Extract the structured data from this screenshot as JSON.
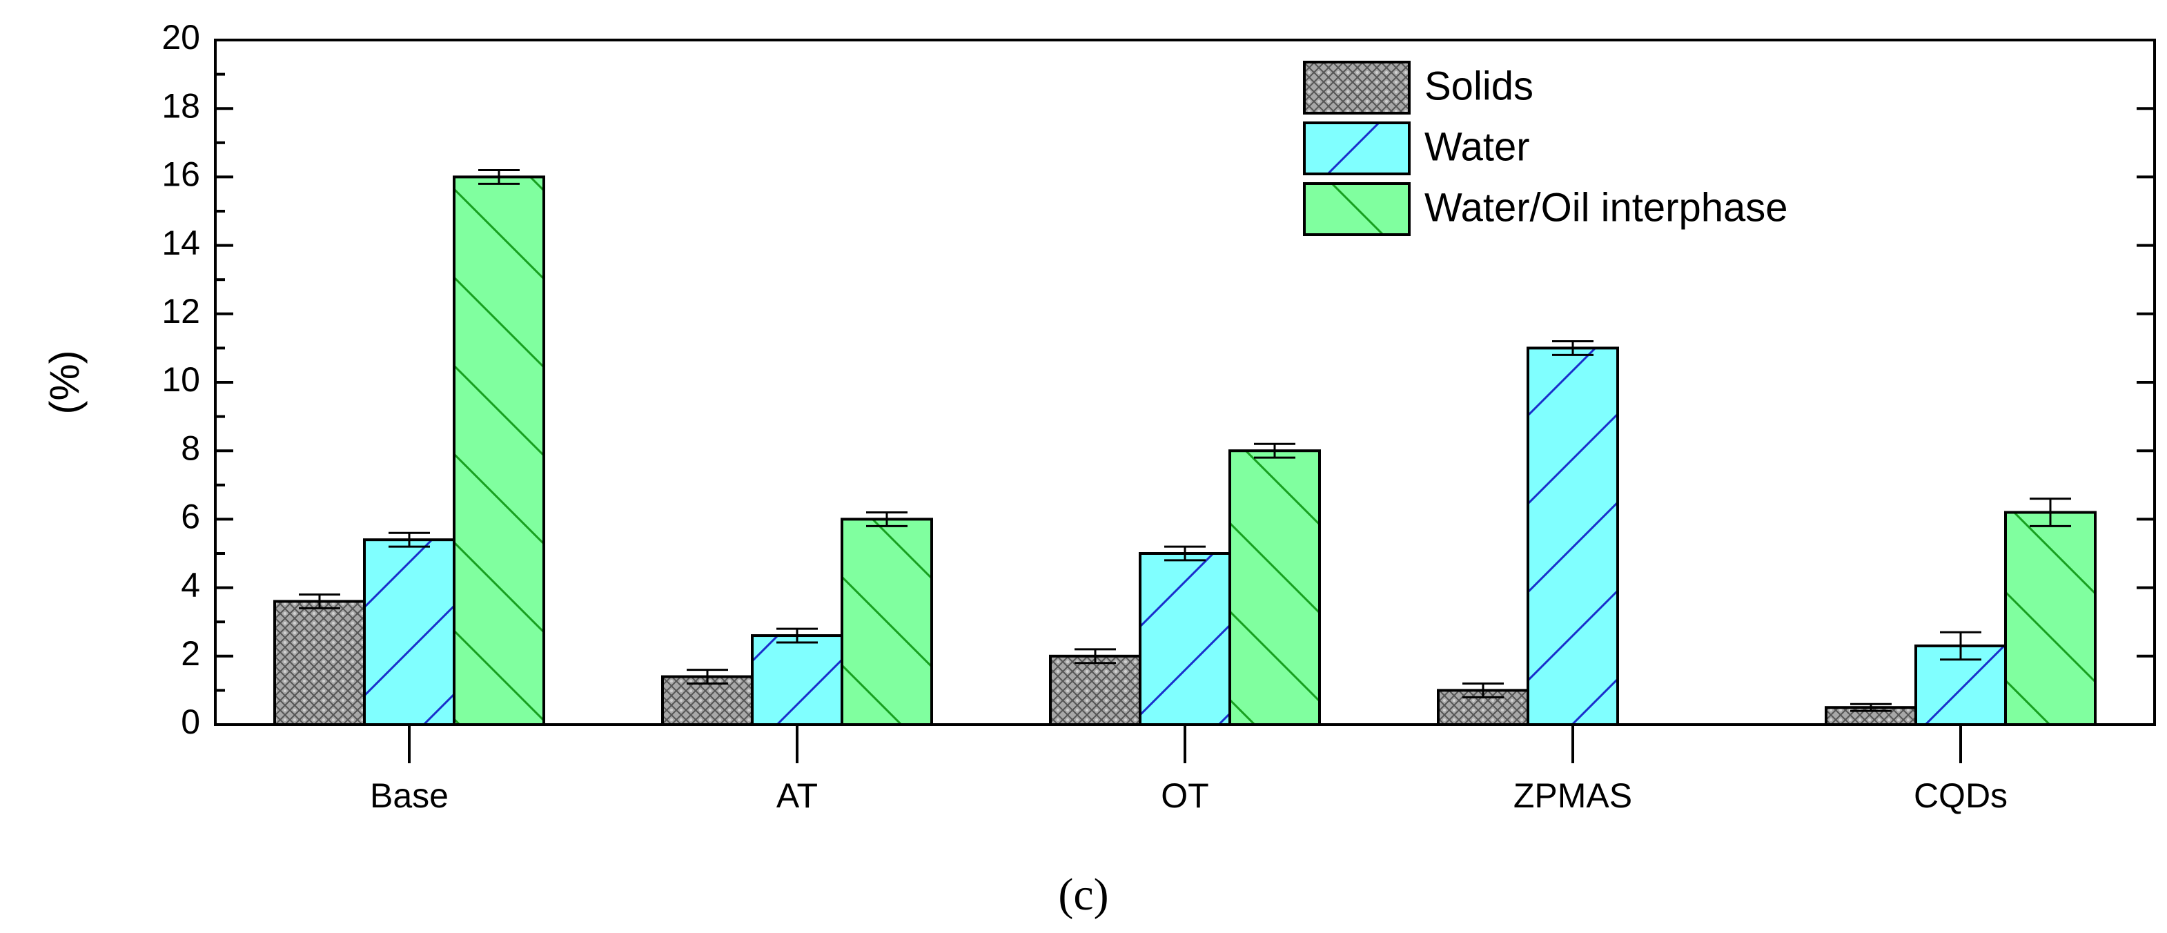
{
  "chart_data": {
    "type": "bar",
    "title": "",
    "xlabel": "",
    "ylabel": "(%)",
    "ylim": [
      0,
      20
    ],
    "yticks": [
      0,
      2,
      4,
      6,
      8,
      10,
      12,
      14,
      16,
      18,
      20
    ],
    "categories": [
      "Base",
      "AT",
      "OT",
      "ZPMAS",
      "CQDs"
    ],
    "series": [
      {
        "name": "Solids",
        "color": "#a6a6a6",
        "pattern": "crosshatch",
        "values": [
          3.6,
          1.4,
          2.0,
          1.0,
          0.5
        ],
        "errors": [
          0.2,
          0.2,
          0.2,
          0.2,
          0.1
        ]
      },
      {
        "name": "Water",
        "color": "#80ffff",
        "pattern": "forward-diagonal-blue",
        "values": [
          5.4,
          2.6,
          5.0,
          11.0,
          2.3
        ],
        "errors": [
          0.2,
          0.2,
          0.2,
          0.2,
          0.4
        ]
      },
      {
        "name": "Water/Oil interphase",
        "color": "#80ff9f",
        "pattern": "back-diagonal-green",
        "values": [
          16.0,
          6.0,
          8.0,
          null,
          6.2
        ],
        "errors": [
          0.2,
          0.2,
          0.2,
          null,
          0.4
        ]
      }
    ],
    "legend_position": "top-right",
    "grid": false
  },
  "caption": "(c)"
}
